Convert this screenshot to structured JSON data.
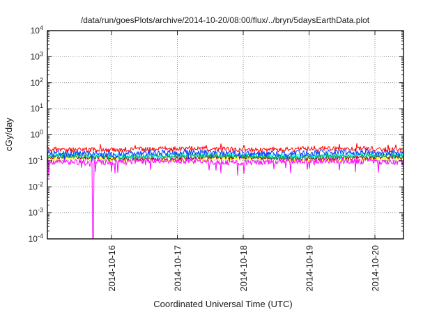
{
  "window": {
    "background": "#ffffff",
    "border_color": "#1a1a1a"
  },
  "chart_data": {
    "type": "line",
    "title": "/data/run/goesPlots/archive/2014-10-20/08:00/flux/../bryn/5daysEarthData.plot",
    "xlabel": "Coordinated Universal Time (UTC)",
    "ylabel": "cGy/day",
    "legend": {
      "visible": false
    },
    "grid": {
      "visible": true,
      "style": "dotted",
      "color": "#909090"
    },
    "x_axis": {
      "scale": "time",
      "tick_labels": [
        "2014-10-16",
        "2014-10-17",
        "2014-10-18",
        "2014-10-19",
        "2014-10-20"
      ],
      "tick_positions_days": [
        0,
        1,
        2,
        3,
        4
      ],
      "range_days_rel_2014_10_16": [
        -0.974,
        4.434
      ],
      "tick_label_rotation_deg": -90
    },
    "y_axis": {
      "scale": "log10",
      "unit": "cGy/day",
      "tick_exponents": [
        4,
        3,
        2,
        1,
        0,
        -1,
        -2,
        -3,
        -4
      ],
      "range": [
        0.0001,
        10000
      ]
    },
    "series_note": "Seven overlapping noisy flux traces forming a horizontal band between ~0.07 and ~0.4 cGy/day; listed in draw order (first drawn at back).",
    "series": [
      {
        "name": "yellow",
        "color": "#ffff00",
        "approx_center_cGy_per_day": 0.115,
        "approx_range": [
          0.09,
          0.15
        ],
        "seed": 101,
        "jitter_decades": 0.07,
        "spike_dir": -1,
        "spike_prob": 0.02,
        "spike_decades": 0.15
      },
      {
        "name": "dark-red",
        "color": "#8b0000",
        "approx_center_cGy_per_day": 0.13,
        "approx_range": [
          0.1,
          0.17
        ],
        "seed": 202,
        "jitter_decades": 0.08,
        "spike_dir": -1,
        "spike_prob": 0.02,
        "spike_decades": 0.15
      },
      {
        "name": "cyan",
        "color": "#00ffff",
        "approx_center_cGy_per_day": 0.16,
        "approx_range": [
          0.11,
          0.22
        ],
        "seed": 303,
        "jitter_decades": 0.09,
        "spike_dir": -1,
        "spike_prob": 0.03,
        "spike_decades": 0.18
      },
      {
        "name": "green",
        "color": "#00b050",
        "approx_center_cGy_per_day": 0.15,
        "approx_range": [
          0.11,
          0.2
        ],
        "seed": 404,
        "jitter_decades": 0.08,
        "spike_dir": -1,
        "spike_prob": 0.03,
        "spike_decades": 0.15
      },
      {
        "name": "blue",
        "color": "#0a3cff",
        "approx_center_cGy_per_day": 0.2,
        "approx_range": [
          0.12,
          0.32
        ],
        "seed": 505,
        "jitter_decades": 0.12,
        "spike_dir": -1,
        "spike_prob": 0.04,
        "spike_decades": 0.22
      },
      {
        "name": "red",
        "color": "#ff0000",
        "approx_center_cGy_per_day": 0.28,
        "approx_range": [
          0.18,
          0.45
        ],
        "seed": 606,
        "jitter_decades": 0.09,
        "spike_dir": 1,
        "spike_prob": 0.06,
        "spike_decades": 0.2
      },
      {
        "name": "magenta",
        "color": "#ff00ff",
        "approx_center_cGy_per_day": 0.095,
        "approx_range": [
          0.03,
          0.14
        ],
        "seed": 707,
        "jitter_decades": 0.11,
        "spike_dir": -1,
        "spike_prob": 0.07,
        "spike_decades": 0.55
      }
    ],
    "anomaly": {
      "series": "magenta",
      "description": "single deep dropout spike down to bottom of scale",
      "time_days_rel_2014_10_16": -0.286,
      "drops_to_cGy_per_day": 0.0001
    }
  }
}
